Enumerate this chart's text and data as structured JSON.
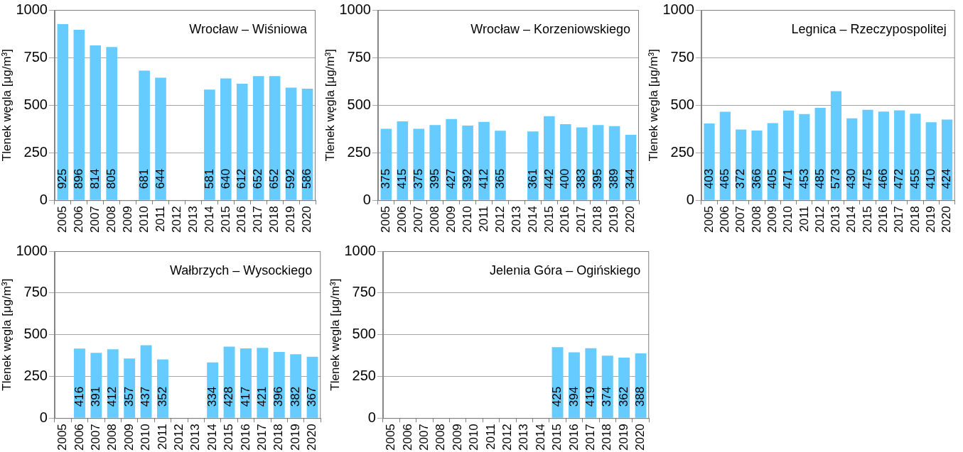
{
  "chart_data": [
    {
      "type": "bar",
      "title": "Wrocław – Wiśniowa",
      "ylabel": "Tlenek węgla [μg/m³]",
      "categories": [
        "2005",
        "2006",
        "2007",
        "2008",
        "2009",
        "2010",
        "2011",
        "2012",
        "2013",
        "2014",
        "2015",
        "2016",
        "2017",
        "2018",
        "2019",
        "2020"
      ],
      "values": [
        925,
        896,
        814,
        805,
        null,
        681,
        644,
        null,
        null,
        581,
        640,
        612,
        652,
        652,
        592,
        586
      ],
      "color": "#66ccff",
      "ylim": [
        0,
        1000
      ],
      "yticks": [
        0,
        250,
        500,
        750,
        1000
      ],
      "grid": "y",
      "data_labels": true
    },
    {
      "type": "bar",
      "title": "Wrocław – Korzeniowskiego",
      "ylabel": "Tlenek węgla [μg/m³]",
      "categories": [
        "2005",
        "2006",
        "2007",
        "2008",
        "2009",
        "2010",
        "2011",
        "2012",
        "2013",
        "2014",
        "2015",
        "2016",
        "2017",
        "2018",
        "2019",
        "2020"
      ],
      "values": [
        375,
        415,
        375,
        395,
        427,
        392,
        412,
        365,
        null,
        361,
        442,
        400,
        383,
        395,
        389,
        344
      ],
      "color": "#66ccff",
      "ylim": [
        0,
        1000
      ],
      "yticks": [
        0,
        250,
        500,
        750,
        1000
      ],
      "grid": "y",
      "data_labels": true
    },
    {
      "type": "bar",
      "title": "Legnica – Rzeczypospolitej",
      "ylabel": "Tlenek węgla [μg/m³]",
      "categories": [
        "2005",
        "2006",
        "2007",
        "2008",
        "2009",
        "2010",
        "2011",
        "2012",
        "2013",
        "2014",
        "2015",
        "2016",
        "2017",
        "2018",
        "2019",
        "2020"
      ],
      "values": [
        403,
        465,
        372,
        366,
        405,
        471,
        453,
        485,
        573,
        430,
        475,
        466,
        472,
        455,
        410,
        424
      ],
      "color": "#66ccff",
      "ylim": [
        0,
        1000
      ],
      "yticks": [
        0,
        250,
        500,
        750,
        1000
      ],
      "grid": "y",
      "data_labels": true
    },
    {
      "type": "bar",
      "title": "Wałbrzych – Wysockiego",
      "ylabel": "Tlenek węgla [μg/m³]",
      "categories": [
        "2005",
        "2006",
        "2007",
        "2008",
        "2009",
        "2010",
        "2011",
        "2012",
        "2013",
        "2014",
        "2015",
        "2016",
        "2017",
        "2018",
        "2019",
        "2020"
      ],
      "values": [
        null,
        416,
        391,
        412,
        357,
        437,
        352,
        null,
        null,
        334,
        428,
        417,
        421,
        396,
        382,
        367
      ],
      "color": "#66ccff",
      "ylim": [
        0,
        1000
      ],
      "yticks": [
        0,
        250,
        500,
        750,
        1000
      ],
      "grid": "y",
      "data_labels": true
    },
    {
      "type": "bar",
      "title": "Jelenia Góra – Ogińskiego",
      "ylabel": "Tlenek węgla [μg/m³]",
      "categories": [
        "2005",
        "2006",
        "2007",
        "2008",
        "2009",
        "2010",
        "2011",
        "2012",
        "2013",
        "2014",
        "2015",
        "2016",
        "2017",
        "2018",
        "2019",
        "2020"
      ],
      "values": [
        null,
        null,
        null,
        null,
        null,
        null,
        null,
        null,
        null,
        null,
        425,
        394,
        419,
        374,
        362,
        388
      ],
      "color": "#66ccff",
      "ylim": [
        0,
        1000
      ],
      "yticks": [
        0,
        250,
        500,
        750,
        1000
      ],
      "grid": "y",
      "data_labels": true
    }
  ]
}
